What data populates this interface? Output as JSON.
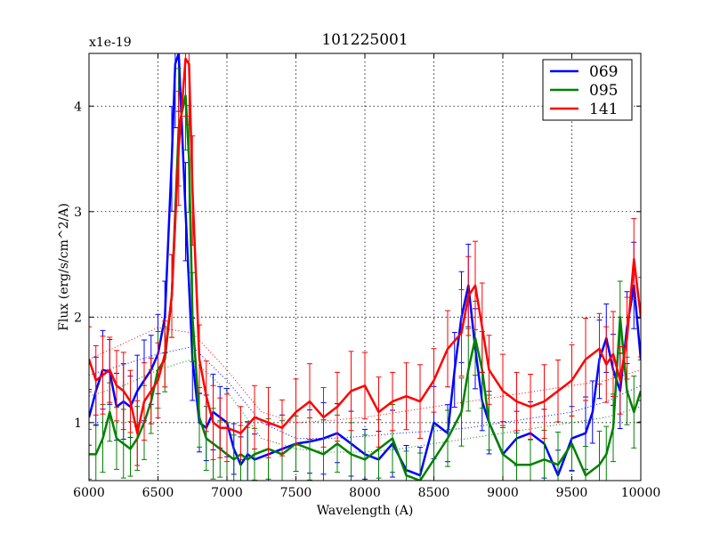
{
  "chart_data": {
    "type": "line",
    "title": "101225001",
    "xlabel": "Wavelength (A)",
    "ylabel": "Flux (erg/s/cm^2/A)",
    "y_offset_label": "x1e-19",
    "xlim": [
      6000,
      10000
    ],
    "ylim": [
      0.45,
      4.5
    ],
    "xticks": [
      6000,
      6500,
      7000,
      7500,
      8000,
      8500,
      9000,
      9500,
      10000
    ],
    "yticks": [
      1,
      2,
      3,
      4
    ],
    "grid": true,
    "legend_position": "top-right",
    "series": [
      {
        "name": "069",
        "color": "#0000ff",
        "x": [
          6000,
          6050,
          6100,
          6150,
          6200,
          6250,
          6300,
          6350,
          6400,
          6450,
          6500,
          6550,
          6600,
          6625,
          6650,
          6700,
          6750,
          6800,
          6850,
          6900,
          6950,
          7000,
          7050,
          7100,
          7150,
          7200,
          7300,
          7400,
          7500,
          7600,
          7700,
          7800,
          7900,
          8000,
          8100,
          8200,
          8300,
          8400,
          8500,
          8600,
          8650,
          8700,
          8750,
          8800,
          8850,
          8900,
          9000,
          9100,
          9200,
          9300,
          9400,
          9500,
          9600,
          9650,
          9700,
          9750,
          9800,
          9850,
          9900,
          9950,
          10000
        ],
        "y": [
          1.05,
          1.3,
          1.5,
          1.48,
          1.15,
          1.2,
          1.15,
          1.3,
          1.4,
          1.5,
          1.65,
          2.0,
          3.5,
          4.4,
          4.5,
          3.0,
          1.6,
          1.0,
          0.95,
          1.1,
          1.05,
          1.0,
          0.75,
          0.6,
          0.7,
          0.65,
          0.7,
          0.75,
          0.8,
          0.82,
          0.85,
          0.9,
          0.8,
          0.7,
          0.65,
          0.8,
          0.55,
          0.5,
          1.0,
          0.9,
          1.5,
          2.0,
          2.3,
          1.7,
          1.2,
          1.0,
          0.7,
          0.85,
          0.9,
          0.8,
          0.5,
          0.85,
          0.9,
          1.1,
          1.6,
          1.8,
          1.5,
          1.3,
          1.9,
          2.3,
          1.6
        ]
      },
      {
        "name": "095",
        "color": "#008000",
        "x": [
          6000,
          6050,
          6100,
          6150,
          6200,
          6250,
          6300,
          6350,
          6400,
          6450,
          6500,
          6550,
          6600,
          6650,
          6700,
          6725,
          6750,
          6800,
          6850,
          6900,
          6950,
          7000,
          7050,
          7100,
          7150,
          7200,
          7300,
          7400,
          7500,
          7600,
          7700,
          7800,
          7900,
          8000,
          8100,
          8200,
          8300,
          8400,
          8500,
          8600,
          8700,
          8750,
          8800,
          8850,
          8900,
          9000,
          9100,
          9200,
          9300,
          9400,
          9500,
          9600,
          9700,
          9750,
          9800,
          9850,
          9900,
          9950,
          10000
        ],
        "y": [
          0.7,
          0.7,
          0.85,
          1.1,
          0.85,
          0.8,
          0.75,
          0.85,
          1.0,
          1.2,
          1.5,
          1.6,
          2.2,
          3.8,
          4.1,
          3.5,
          2.0,
          1.05,
          0.85,
          0.8,
          0.75,
          0.7,
          0.65,
          0.7,
          0.65,
          0.7,
          0.75,
          0.7,
          0.8,
          0.75,
          0.7,
          0.8,
          0.7,
          0.65,
          0.75,
          0.85,
          0.5,
          0.45,
          0.65,
          0.85,
          1.1,
          1.5,
          1.8,
          1.5,
          1.0,
          0.7,
          0.6,
          0.6,
          0.65,
          0.6,
          0.8,
          0.5,
          0.6,
          0.7,
          0.95,
          2.0,
          1.3,
          1.1,
          1.3
        ]
      },
      {
        "name": "141",
        "color": "#ff0000",
        "x": [
          6000,
          6050,
          6100,
          6150,
          6200,
          6250,
          6300,
          6350,
          6400,
          6450,
          6500,
          6550,
          6600,
          6650,
          6700,
          6725,
          6750,
          6800,
          6850,
          6900,
          6950,
          7000,
          7100,
          7200,
          7300,
          7400,
          7500,
          7600,
          7700,
          7800,
          7900,
          8000,
          8100,
          8200,
          8300,
          8400,
          8500,
          8600,
          8700,
          8750,
          8800,
          8850,
          8900,
          9000,
          9100,
          9200,
          9300,
          9400,
          9500,
          9600,
          9700,
          9750,
          9800,
          9850,
          9900,
          9950,
          10000
        ],
        "y": [
          1.6,
          1.4,
          1.45,
          1.5,
          1.35,
          1.3,
          1.2,
          0.9,
          1.2,
          1.3,
          1.4,
          1.65,
          2.2,
          3.6,
          4.45,
          4.4,
          3.2,
          1.6,
          1.25,
          1.0,
          0.95,
          0.95,
          0.9,
          1.05,
          1.0,
          0.95,
          1.1,
          1.2,
          1.05,
          1.15,
          1.3,
          1.35,
          1.1,
          1.2,
          1.25,
          1.2,
          1.4,
          1.7,
          1.85,
          2.2,
          2.3,
          1.9,
          1.5,
          1.3,
          1.2,
          1.15,
          1.2,
          1.3,
          1.4,
          1.6,
          1.7,
          1.55,
          1.65,
          1.4,
          1.8,
          2.55,
          2.0
        ]
      }
    ],
    "continuum": [
      {
        "name": "069-continuum",
        "color": "#0000ff",
        "x": [
          6000,
          6250,
          6500,
          6750,
          7000,
          7250,
          7500,
          7750,
          8000,
          8250,
          8500,
          8750,
          9000,
          9250,
          9500,
          9750,
          10000
        ],
        "y": [
          1.45,
          1.55,
          1.65,
          1.72,
          1.4,
          1.0,
          0.85,
          0.85,
          0.87,
          0.9,
          0.92,
          0.95,
          1.0,
          1.05,
          1.1,
          1.2,
          1.35
        ]
      },
      {
        "name": "095-continuum",
        "color": "#008000",
        "x": [
          6000,
          6250,
          6500,
          6750,
          7000,
          7250,
          7500,
          7750,
          8000,
          8250,
          8500,
          8750,
          9000,
          9250,
          9500,
          9750,
          10000
        ],
        "y": [
          1.25,
          1.35,
          1.5,
          1.6,
          1.3,
          0.85,
          0.75,
          0.72,
          0.72,
          0.75,
          0.8,
          0.85,
          0.9,
          0.95,
          1.0,
          1.05,
          1.15
        ]
      },
      {
        "name": "141-continuum",
        "color": "#ff0000",
        "x": [
          6000,
          6250,
          6500,
          6750,
          7000,
          7250,
          7500,
          7750,
          8000,
          8250,
          8500,
          8750,
          9000,
          9250,
          9500,
          9750,
          10000
        ],
        "y": [
          1.6,
          1.75,
          1.9,
          1.85,
          1.5,
          1.1,
          1.0,
          1.02,
          1.05,
          1.1,
          1.15,
          1.2,
          1.25,
          1.3,
          1.35,
          1.4,
          1.5
        ]
      }
    ]
  }
}
